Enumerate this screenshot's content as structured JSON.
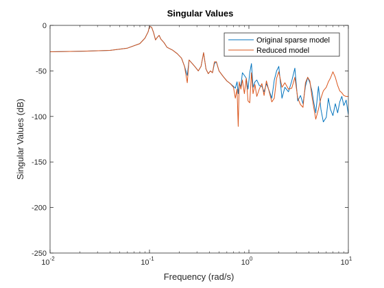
{
  "chart_data": {
    "type": "line",
    "title": "Singular Values",
    "xlabel": "Frequency (rad/s)",
    "ylabel": "Singular Values (dB)",
    "xscale": "log",
    "xlim": [
      0.01,
      10
    ],
    "ylim": [
      -250,
      0
    ],
    "xticks": [
      {
        "value": 0.01,
        "base": "10",
        "exp": "-2"
      },
      {
        "value": 0.1,
        "base": "10",
        "exp": "-1"
      },
      {
        "value": 1,
        "base": "10",
        "exp": "0"
      },
      {
        "value": 10,
        "base": "10",
        "exp": "1"
      }
    ],
    "yticks": [
      {
        "value": 0,
        "label": "0"
      },
      {
        "value": -50,
        "label": "-50"
      },
      {
        "value": -100,
        "label": "-100"
      },
      {
        "value": -150,
        "label": "-150"
      },
      {
        "value": -200,
        "label": "-200"
      },
      {
        "value": -250,
        "label": "-250"
      }
    ],
    "grid": false,
    "box": true,
    "legend_position": "top-right",
    "series": [
      {
        "name": "Original sparse model",
        "color": "#0072BD",
        "x": [
          0.01,
          0.02,
          0.04,
          0.06,
          0.08,
          0.09,
          0.097,
          0.1,
          0.105,
          0.11,
          0.115,
          0.12,
          0.125,
          0.13,
          0.14,
          0.15,
          0.17,
          0.19,
          0.21,
          0.225,
          0.24,
          0.25,
          0.27,
          0.29,
          0.31,
          0.33,
          0.35,
          0.37,
          0.39,
          0.41,
          0.43,
          0.45,
          0.47,
          0.5,
          0.55,
          0.6,
          0.65,
          0.7,
          0.73,
          0.76,
          0.78,
          0.8,
          0.83,
          0.86,
          0.9,
          0.94,
          0.98,
          1.02,
          1.06,
          1.1,
          1.15,
          1.2,
          1.27,
          1.35,
          1.42,
          1.5,
          1.6,
          1.7,
          1.8,
          1.9,
          2.0,
          2.15,
          2.3,
          2.5,
          2.7,
          2.9,
          3.1,
          3.3,
          3.5,
          3.7,
          3.9,
          4.1,
          4.3,
          4.5,
          4.7,
          5.0,
          5.3,
          5.6,
          6.0,
          6.3,
          6.6,
          7.0,
          7.4,
          7.8,
          8.2,
          8.6,
          9.0,
          9.5,
          10.0
        ],
        "y": [
          -29,
          -28.5,
          -27.5,
          -25,
          -20,
          -14,
          -7,
          -1,
          -2,
          -8,
          -16,
          -13,
          -11,
          -15,
          -19,
          -24,
          -27,
          -31,
          -36,
          -45,
          -55,
          -38,
          -42,
          -46,
          -50,
          -45,
          -30,
          -48,
          -53,
          -50,
          -52,
          -42,
          -40,
          -50,
          -56,
          -61,
          -64,
          -67,
          -69,
          -62,
          -75,
          -64,
          -67,
          -52,
          -55,
          -58,
          -70,
          -52,
          -42,
          -68,
          -62,
          -60,
          -66,
          -67,
          -73,
          -64,
          -72,
          -80,
          -60,
          -50,
          -45,
          -80,
          -68,
          -73,
          -61,
          -47,
          -83,
          -77,
          -86,
          -67,
          -57,
          -63,
          -72,
          -85,
          -96,
          -67,
          -92,
          -106,
          -101,
          -80,
          -92,
          -99,
          -86,
          -96,
          -84,
          -78,
          -88,
          -82,
          -98
        ]
      },
      {
        "name": "Reduced model",
        "color": "#D95319",
        "x": [
          0.01,
          0.02,
          0.04,
          0.06,
          0.08,
          0.09,
          0.097,
          0.1,
          0.105,
          0.11,
          0.115,
          0.12,
          0.125,
          0.13,
          0.14,
          0.15,
          0.17,
          0.19,
          0.21,
          0.225,
          0.24,
          0.25,
          0.27,
          0.29,
          0.31,
          0.33,
          0.35,
          0.37,
          0.39,
          0.41,
          0.43,
          0.45,
          0.47,
          0.5,
          0.55,
          0.6,
          0.65,
          0.7,
          0.73,
          0.76,
          0.78,
          0.8,
          0.83,
          0.86,
          0.9,
          0.94,
          0.98,
          1.02,
          1.06,
          1.1,
          1.15,
          1.2,
          1.27,
          1.35,
          1.42,
          1.5,
          1.6,
          1.7,
          1.8,
          1.9,
          2.0,
          2.15,
          2.3,
          2.5,
          2.7,
          2.9,
          3.1,
          3.3,
          3.5,
          3.7,
          3.9,
          4.1,
          4.3,
          4.5,
          4.7,
          5.0,
          5.3,
          5.6,
          6.0,
          6.3,
          6.6,
          7.0,
          7.4,
          7.8,
          8.2,
          8.6,
          9.0,
          9.5,
          10.0
        ],
        "y": [
          -29,
          -28.5,
          -27.5,
          -25,
          -20,
          -14,
          -7,
          -1,
          -2,
          -8,
          -16,
          -13,
          -11,
          -15,
          -19,
          -24,
          -27,
          -31,
          -36,
          -45,
          -63,
          -38,
          -42,
          -46,
          -50,
          -45,
          -30,
          -48,
          -53,
          -50,
          -52,
          -40,
          -40,
          -50,
          -56,
          -61,
          -64,
          -68,
          -80,
          -70,
          -111,
          -62,
          -70,
          -60,
          -75,
          -58,
          -83,
          -85,
          -52,
          -75,
          -65,
          -78,
          -70,
          -64,
          -77,
          -61,
          -73,
          -84,
          -80,
          -58,
          -51,
          -68,
          -63,
          -70,
          -69,
          -57,
          -80,
          -87,
          -90,
          -63,
          -57,
          -61,
          -78,
          -91,
          -103,
          -92,
          -80,
          -72,
          -68,
          -62,
          -58,
          -51,
          -57,
          -66,
          -72,
          -74,
          -77,
          -78,
          -78
        ]
      }
    ]
  }
}
